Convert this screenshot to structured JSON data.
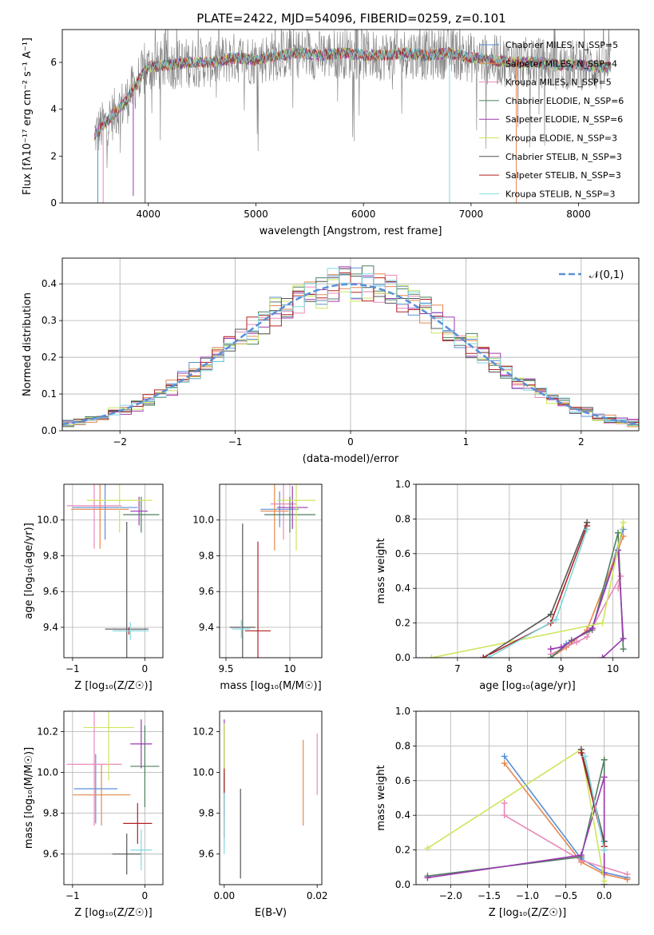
{
  "colors": [
    "#5a8fd6",
    "#e6874f",
    "#e98ab8",
    "#4e7f5e",
    "#9a39b0",
    "#cde65c",
    "#555555",
    "#b22222",
    "#7fd8e0"
  ],
  "chart_data": [
    {
      "id": "spectrum",
      "type": "line",
      "title": "PLATE=2422, MJD=54096, FIBERID=0259, z=0.101",
      "xlabel": "wavelength [Angstrom, rest frame]",
      "ylabel": "Flux [fλ10⁻¹⁷ erg cm⁻² s⁻¹ A⁻¹]",
      "xlim": [
        3200,
        8560
      ],
      "ylim": [
        0,
        7.4
      ],
      "xticks": [
        4000,
        5000,
        6000,
        7000,
        8000
      ],
      "yticks": [
        0,
        2,
        4,
        6
      ],
      "x_range_data": [
        3500,
        8300
      ],
      "legend_position": "upper-right",
      "series": [
        {
          "name": "Chabrier MILES, N_SSP=5"
        },
        {
          "name": "Salpeter MILES, N_SSP=4"
        },
        {
          "name": "Kroupa MILES, N_SSP=5"
        },
        {
          "name": "Chabrier ELODIE, N_SSP=6"
        },
        {
          "name": "Salpeter ELODIE, N_SSP=6"
        },
        {
          "name": "Kroupa ELODIE, N_SSP=3"
        },
        {
          "name": "Chabrier STELIB, N_SSP=3"
        },
        {
          "name": "Salpeter STELIB, N_SSP=3"
        },
        {
          "name": "Kroupa STELIB, N_SSP=3"
        }
      ],
      "continuum": [
        [
          3500,
          2.9
        ],
        [
          3600,
          3.4
        ],
        [
          3700,
          3.9
        ],
        [
          3800,
          4.4
        ],
        [
          3900,
          5.2
        ],
        [
          4000,
          5.8
        ],
        [
          4200,
          5.9
        ],
        [
          4400,
          6.0
        ],
        [
          4600,
          6.0
        ],
        [
          4800,
          6.2
        ],
        [
          5000,
          6.1
        ],
        [
          5200,
          6.3
        ],
        [
          5400,
          6.4
        ],
        [
          5600,
          6.3
        ],
        [
          5800,
          6.4
        ],
        [
          6000,
          6.3
        ],
        [
          6200,
          6.3
        ],
        [
          6400,
          6.4
        ],
        [
          6600,
          6.3
        ],
        [
          6800,
          6.4
        ],
        [
          7000,
          6.2
        ],
        [
          7200,
          6.1
        ],
        [
          7400,
          6.0
        ],
        [
          7600,
          6.0
        ],
        [
          7800,
          5.9
        ],
        [
          8000,
          5.9
        ],
        [
          8200,
          5.8
        ],
        [
          8300,
          5.8
        ]
      ]
    },
    {
      "id": "residuals",
      "type": "step",
      "xlabel": "(data-model)/error",
      "ylabel": "Normed distribution",
      "xlim": [
        -2.5,
        2.5
      ],
      "ylim": [
        0,
        0.47
      ],
      "xticks": [
        -2,
        -1,
        0,
        1,
        2
      ],
      "yticks": [
        0.0,
        0.1,
        0.2,
        0.3,
        0.4
      ],
      "grid": true,
      "legend_position": "upper-right",
      "reference": {
        "name": "𝒩(0,1)",
        "mean": 0,
        "sigma": 1,
        "color": "#5a8fd6"
      },
      "bin_width": 0.1
    },
    {
      "id": "age-vs-Z",
      "type": "errorbar",
      "xlabel": "Z [log₁₀(Z/Z☉)]",
      "ylabel": "age  [log₁₀(age/yr)]",
      "xlim": [
        -1.12,
        0.25
      ],
      "ylim": [
        9.23,
        10.2
      ],
      "xticks": [
        -1,
        0
      ],
      "yticks": [
        9.4,
        9.6,
        9.8,
        10.0
      ],
      "grid": true,
      "points": [
        {
          "x": -0.55,
          "xerr": 0.45,
          "y": 10.07,
          "yerr": 0.18,
          "c": 0
        },
        {
          "x": -0.62,
          "xerr": 0.4,
          "y": 10.06,
          "yerr": 0.22,
          "c": 1
        },
        {
          "x": -0.7,
          "xerr": 0.38,
          "y": 10.08,
          "yerr": 0.24,
          "c": 2
        },
        {
          "x": -0.05,
          "xerr": 0.25,
          "y": 10.03,
          "yerr": 0.1,
          "c": 3
        },
        {
          "x": -0.08,
          "xerr": 0.12,
          "y": 10.05,
          "yerr": 0.08,
          "c": 4
        },
        {
          "x": -0.35,
          "xerr": 0.45,
          "y": 10.11,
          "yerr": 0.18,
          "c": 5
        },
        {
          "x": -0.25,
          "xerr": 0.3,
          "y": 9.39,
          "yerr": 0.6,
          "c": 6
        },
        {
          "x": -0.22,
          "xerr": 0.2,
          "y": 9.38,
          "yerr": 0.02,
          "c": 7
        },
        {
          "x": -0.2,
          "xerr": 0.25,
          "y": 9.38,
          "yerr": 0.05,
          "c": 8
        }
      ]
    },
    {
      "id": "age-vs-mass",
      "type": "errorbar",
      "xlabel": "mass [log₁₀(M/M☉)]",
      "ylabel": "",
      "xlim": [
        9.45,
        10.25
      ],
      "ylim": [
        9.23,
        10.2
      ],
      "xticks": [
        9.5,
        10.0
      ],
      "yticks": [
        9.4,
        9.6,
        9.8,
        10.0
      ],
      "grid": true,
      "points": [
        {
          "x": 9.92,
          "xerr": 0.15,
          "y": 10.06,
          "yerr": 0.1,
          "c": 0
        },
        {
          "x": 9.88,
          "xerr": 0.11,
          "y": 10.05,
          "yerr": 0.22,
          "c": 1
        },
        {
          "x": 9.95,
          "xerr": 0.1,
          "y": 10.09,
          "yerr": 0.2,
          "c": 2
        },
        {
          "x": 10.0,
          "xerr": 0.2,
          "y": 10.03,
          "yerr": 0.1,
          "c": 3
        },
        {
          "x": 10.02,
          "xerr": 0.12,
          "y": 10.07,
          "yerr": 0.12,
          "c": 4
        },
        {
          "x": 10.05,
          "xerr": 0.15,
          "y": 10.11,
          "yerr": 0.28,
          "c": 5
        },
        {
          "x": 9.63,
          "xerr": 0.1,
          "y": 9.4,
          "yerr": 0.58,
          "c": 6
        },
        {
          "x": 9.75,
          "xerr": 0.1,
          "y": 9.38,
          "yerr": 0.5,
          "c": 7
        },
        {
          "x": 9.62,
          "xerr": 0.07,
          "y": 9.39,
          "yerr": 0.05,
          "c": 8
        }
      ]
    },
    {
      "id": "weight-vs-age",
      "type": "line",
      "xlabel": "age  [log₁₀(age/yr)]",
      "ylabel": "mass weight",
      "xlim": [
        6.2,
        10.5
      ],
      "ylim": [
        0,
        1.0
      ],
      "xticks": [
        7,
        8,
        9,
        10
      ],
      "yticks": [
        0.0,
        0.2,
        0.4,
        0.6,
        0.8,
        1.0
      ],
      "grid": true,
      "series": [
        {
          "c": 0,
          "pts": [
            [
              8.8,
              0.0
            ],
            [
              9.1,
              0.08
            ],
            [
              9.6,
              0.17
            ],
            [
              10.2,
              0.74
            ]
          ]
        },
        {
          "c": 1,
          "pts": [
            [
              8.8,
              0.0
            ],
            [
              9.1,
              0.06
            ],
            [
              9.5,
              0.16
            ],
            [
              10.2,
              0.7
            ]
          ]
        },
        {
          "c": 2,
          "pts": [
            [
              8.8,
              0.02
            ],
            [
              9.3,
              0.09
            ],
            [
              9.5,
              0.12
            ],
            [
              10.15,
              0.47
            ],
            [
              10.1,
              0.4
            ]
          ]
        },
        {
          "c": 3,
          "pts": [
            [
              8.8,
              0.0
            ],
            [
              9.2,
              0.1
            ],
            [
              9.6,
              0.16
            ],
            [
              10.1,
              0.72
            ],
            [
              10.2,
              0.05
            ]
          ]
        },
        {
          "c": 4,
          "pts": [
            [
              8.8,
              0.05
            ],
            [
              9.0,
              0.06
            ],
            [
              9.6,
              0.17
            ],
            [
              10.1,
              0.62
            ],
            [
              10.2,
              0.11
            ],
            [
              9.8,
              0.0
            ]
          ]
        },
        {
          "c": 5,
          "pts": [
            [
              6.5,
              0.0
            ],
            [
              9.8,
              0.2
            ],
            [
              10.2,
              0.78
            ]
          ]
        },
        {
          "c": 6,
          "pts": [
            [
              7.5,
              0.0
            ],
            [
              8.8,
              0.25
            ],
            [
              9.5,
              0.78
            ]
          ]
        },
        {
          "c": 7,
          "pts": [
            [
              7.5,
              0.0
            ],
            [
              8.8,
              0.2
            ],
            [
              9.5,
              0.76
            ]
          ]
        },
        {
          "c": 8,
          "pts": [
            [
              7.6,
              0.0
            ],
            [
              8.9,
              0.22
            ],
            [
              9.5,
              0.74
            ]
          ]
        }
      ]
    },
    {
      "id": "mass-vs-Z",
      "type": "errorbar",
      "xlabel": "Z [log₁₀(Z/Z☉)]",
      "ylabel": "mass [log₁₀(M/M☉)]",
      "xlim": [
        -1.12,
        0.25
      ],
      "ylim": [
        9.45,
        10.3
      ],
      "xticks": [
        -1,
        0
      ],
      "yticks": [
        9.6,
        9.8,
        10.0,
        10.2
      ],
      "grid": true,
      "points": [
        {
          "x": -0.68,
          "xerr": 0.3,
          "y": 9.92,
          "yerr": 0.17,
          "c": 0
        },
        {
          "x": -0.6,
          "xerr": 0.4,
          "y": 9.89,
          "yerr": 0.15,
          "c": 1
        },
        {
          "x": -0.7,
          "xerr": 0.38,
          "y": 10.04,
          "yerr": 0.3,
          "c": 2
        },
        {
          "x": 0.0,
          "xerr": 0.2,
          "y": 10.03,
          "yerr": 0.2,
          "c": 3
        },
        {
          "x": -0.05,
          "xerr": 0.15,
          "y": 10.14,
          "yerr": 0.12,
          "c": 4
        },
        {
          "x": -0.5,
          "xerr": 0.35,
          "y": 10.22,
          "yerr": 0.26,
          "c": 5
        },
        {
          "x": -0.25,
          "xerr": 0.2,
          "y": 9.6,
          "yerr": 0.1,
          "c": 6
        },
        {
          "x": -0.1,
          "xerr": 0.2,
          "y": 9.75,
          "yerr": 0.1,
          "c": 7
        },
        {
          "x": -0.05,
          "xerr": 0.15,
          "y": 9.62,
          "yerr": 0.1,
          "c": 8
        }
      ]
    },
    {
      "id": "mass-vs-EBV",
      "type": "errorbar",
      "xlabel": "E(B-V)",
      "ylabel": "",
      "xlim": [
        -0.001,
        0.021
      ],
      "ylim": [
        9.45,
        10.3
      ],
      "xticks": [
        0.0,
        0.02
      ],
      "xticklabels": [
        "0.00",
        "0.02"
      ],
      "yticks": [
        9.6,
        9.8,
        10.0,
        10.2
      ],
      "grid": false,
      "points": [
        {
          "x": 0.0,
          "y": 9.92,
          "yerr": 0.14,
          "c": 0
        },
        {
          "x": 0.017,
          "y": 9.95,
          "yerr": 0.21,
          "c": 1
        },
        {
          "x": 0.02,
          "y": 10.04,
          "yerr": 0.15,
          "c": 2
        },
        {
          "x": 0.0,
          "y": 10.03,
          "yerr": 0.2,
          "c": 3
        },
        {
          "x": 0.0,
          "y": 10.14,
          "yerr": 0.12,
          "c": 4
        },
        {
          "x": 0.0,
          "y": 10.12,
          "yerr": 0.12,
          "c": 5
        },
        {
          "x": 0.0035,
          "y": 9.7,
          "yerr": 0.22,
          "c": 6
        },
        {
          "x": 0.0,
          "y": 9.85,
          "yerr": 0.17,
          "c": 7
        },
        {
          "x": 0.0,
          "y": 9.75,
          "yerr": 0.15,
          "c": 8
        }
      ]
    },
    {
      "id": "weight-vs-Z",
      "type": "line",
      "xlabel": "Z [log₁₀(Z/Z☉)]",
      "ylabel": "mass weight",
      "xlim": [
        -2.45,
        0.45
      ],
      "ylim": [
        0,
        1.0
      ],
      "xticks": [
        -2.0,
        -1.5,
        -1.0,
        -0.5,
        0.0
      ],
      "xticklabels": [
        "−2.0",
        "−1.5",
        "−1.0",
        "−0.5",
        "0.0"
      ],
      "yticks": [
        0.0,
        0.2,
        0.4,
        0.6,
        0.8,
        1.0
      ],
      "grid": true,
      "series": [
        {
          "c": 0,
          "pts": [
            [
              -1.3,
              0.74
            ],
            [
              -0.3,
              0.15
            ],
            [
              0.0,
              0.07
            ],
            [
              0.3,
              0.04
            ]
          ]
        },
        {
          "c": 1,
          "pts": [
            [
              -1.3,
              0.7
            ],
            [
              -0.3,
              0.13
            ],
            [
              0.0,
              0.06
            ],
            [
              0.3,
              0.03
            ]
          ]
        },
        {
          "c": 2,
          "pts": [
            [
              -1.3,
              0.47
            ],
            [
              -1.3,
              0.4
            ],
            [
              -0.3,
              0.14
            ],
            [
              0.3,
              0.06
            ]
          ]
        },
        {
          "c": 3,
          "pts": [
            [
              -2.3,
              0.05
            ],
            [
              -0.3,
              0.16
            ],
            [
              0.0,
              0.72
            ],
            [
              0.0,
              0.0
            ]
          ]
        },
        {
          "c": 4,
          "pts": [
            [
              -2.3,
              0.04
            ],
            [
              -0.3,
              0.17
            ],
            [
              0.0,
              0.62
            ],
            [
              0.0,
              0.0
            ]
          ]
        },
        {
          "c": 5,
          "pts": [
            [
              -2.3,
              0.21
            ],
            [
              -0.3,
              0.78
            ],
            [
              0.0,
              0.02
            ]
          ]
        },
        {
          "c": 6,
          "pts": [
            [
              -0.3,
              0.78
            ],
            [
              0.0,
              0.25
            ],
            [
              0.0,
              0.2
            ]
          ]
        },
        {
          "c": 7,
          "pts": [
            [
              -0.3,
              0.76
            ],
            [
              0.0,
              0.22
            ]
          ]
        },
        {
          "c": 8,
          "pts": [
            [
              -0.25,
              0.74
            ],
            [
              0.0,
              0.2
            ]
          ]
        }
      ]
    }
  ]
}
